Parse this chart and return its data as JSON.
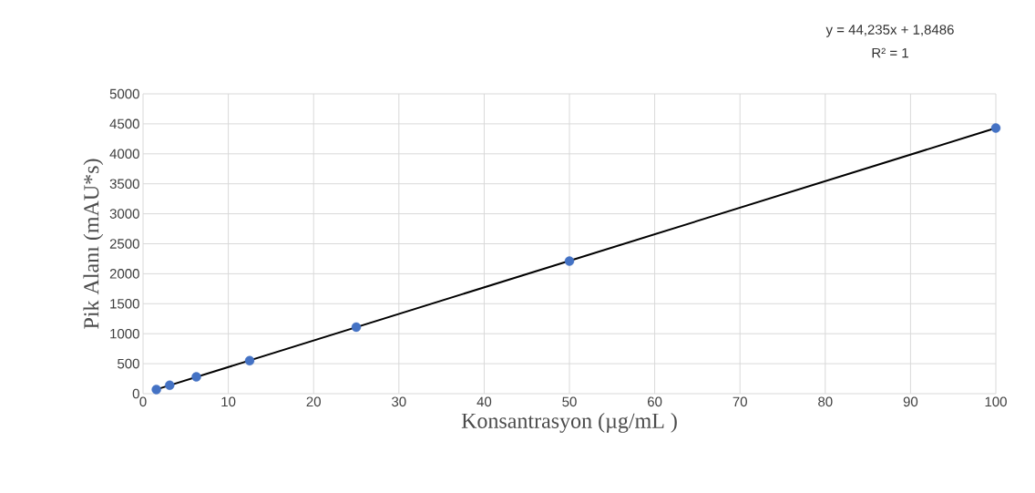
{
  "chart_data": {
    "type": "scatter",
    "xlabel": "Konsantrasyon (µg/mL )",
    "ylabel": "Pik Alanı (mAU*s)",
    "annotations": [
      "y = 44,235x + 1,8486",
      "R² = 1"
    ],
    "series": [
      {
        "color": "#4472c4",
        "marker": "circle",
        "x": [
          1.5625,
          3.125,
          6.25,
          12.5,
          25,
          50,
          100
        ],
        "values": [
          70,
          140,
          280,
          550,
          1110,
          2210,
          4430
        ]
      },
      {
        "type": "line",
        "color": "#000000",
        "marker": "none",
        "line_style": "solid",
        "x": [
          1.5625,
          100
        ],
        "values": [
          70,
          4430
        ]
      }
    ],
    "xlim": [
      0,
      100
    ],
    "xticks": [
      0,
      10,
      20,
      30,
      40,
      50,
      60,
      70,
      80,
      90,
      100
    ],
    "ylim": [
      0,
      5000
    ],
    "yticks": [
      0,
      500,
      1000,
      1500,
      2000,
      2500,
      3000,
      3500,
      4000,
      4500,
      5000
    ],
    "grid": true
  }
}
